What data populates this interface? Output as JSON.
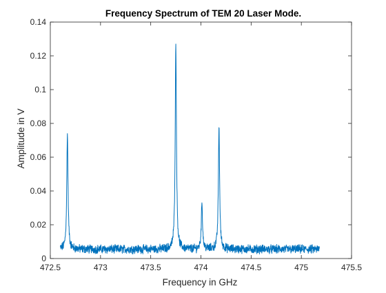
{
  "chart_data": {
    "type": "line",
    "title": "Frequency Spectrum of TEM 20 Laser Mode.",
    "xlabel": "Frequency in GHz",
    "ylabel": "Amplitude in V",
    "xlim": [
      472.5,
      475.5
    ],
    "ylim": [
      0,
      0.14
    ],
    "x_ticks": [
      472.5,
      473,
      473.5,
      474,
      474.5,
      475,
      475.5
    ],
    "x_tick_labels": [
      "472.5",
      "473",
      "473.5",
      "474",
      "474.5",
      "475",
      "475.5"
    ],
    "y_ticks": [
      0,
      0.02,
      0.04,
      0.06,
      0.08,
      0.1,
      0.12,
      0.14
    ],
    "y_tick_labels": [
      "0",
      "0.02",
      "0.04",
      "0.06",
      "0.08",
      "0.1",
      "0.12",
      "0.14"
    ],
    "grid": false,
    "legend": "none",
    "series_color": "#0072BD",
    "x_start": 472.6,
    "x_end": 475.18,
    "noise_floor": 0.0055,
    "peaks": [
      {
        "x": 472.67,
        "y": 0.074
      },
      {
        "x": 473.75,
        "y": 0.127
      },
      {
        "x": 474.01,
        "y": 0.033
      },
      {
        "x": 474.18,
        "y": 0.0775
      }
    ]
  }
}
